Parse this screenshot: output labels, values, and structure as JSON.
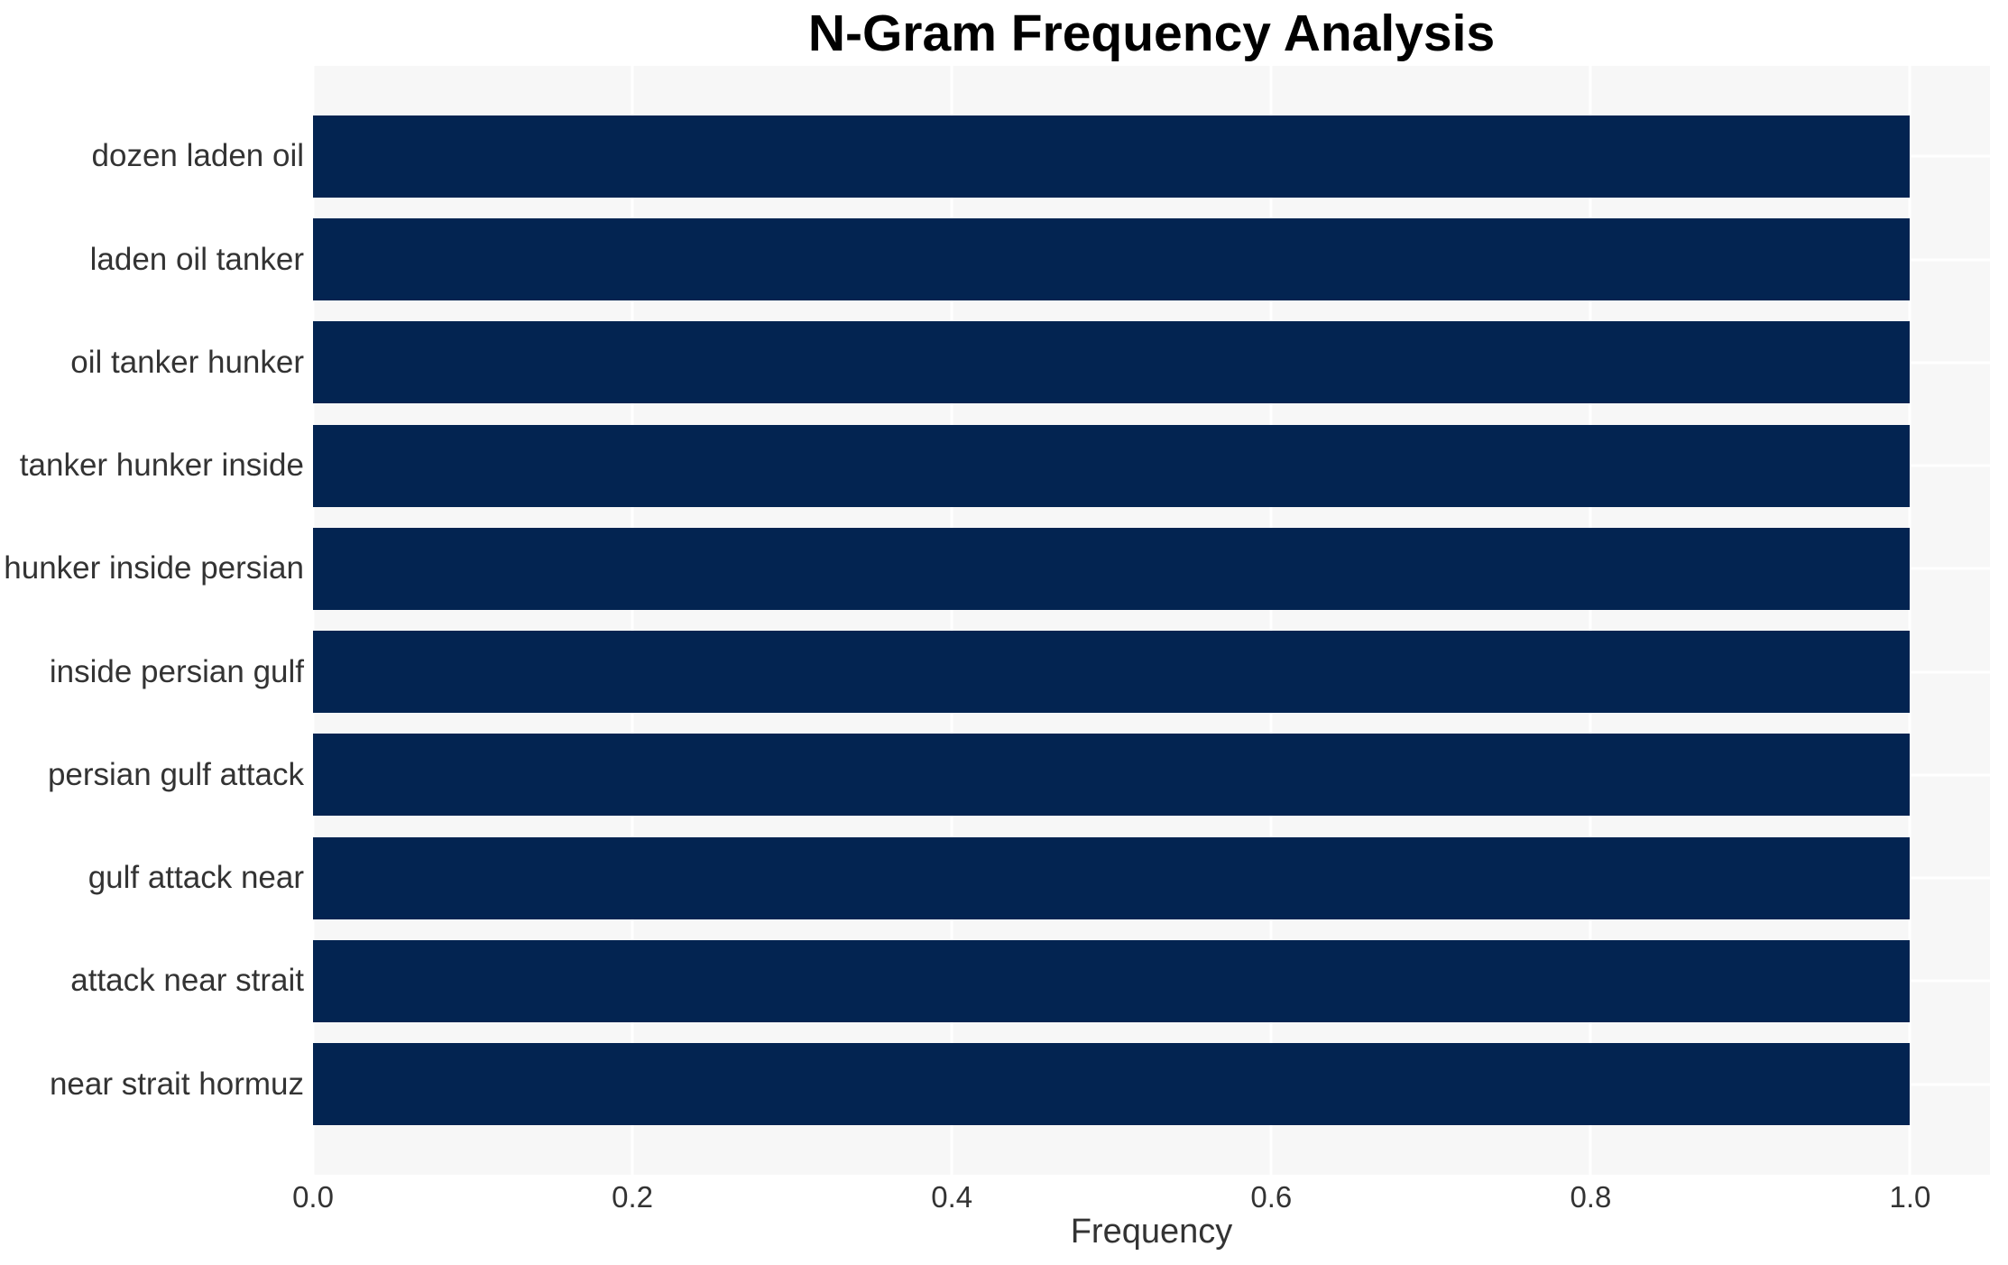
{
  "chart_data": {
    "type": "bar",
    "orientation": "horizontal",
    "title": "N-Gram Frequency Analysis",
    "xlabel": "Frequency",
    "ylabel": "",
    "categories": [
      "dozen laden oil",
      "laden oil tanker",
      "oil tanker hunker",
      "tanker hunker inside",
      "hunker inside persian",
      "inside persian gulf",
      "persian gulf attack",
      "gulf attack near",
      "attack near strait",
      "near strait hormuz"
    ],
    "values": [
      1.0,
      1.0,
      1.0,
      1.0,
      1.0,
      1.0,
      1.0,
      1.0,
      1.0,
      1.0
    ],
    "xticks": {
      "values": [
        0.0,
        0.2,
        0.4,
        0.6,
        0.8,
        1.0
      ],
      "labels": [
        "0.0",
        "0.2",
        "0.4",
        "0.6",
        "0.8",
        "1.0"
      ]
    },
    "xlim": [
      0,
      1.05
    ],
    "grid": true,
    "legend": null,
    "colors": {
      "bar": "#032451",
      "plot_background": "#f7f7f7",
      "gridline": "#ffffff",
      "figure_background": "#ffffff",
      "axis_text": "#333333",
      "title_text": "#000000"
    }
  }
}
